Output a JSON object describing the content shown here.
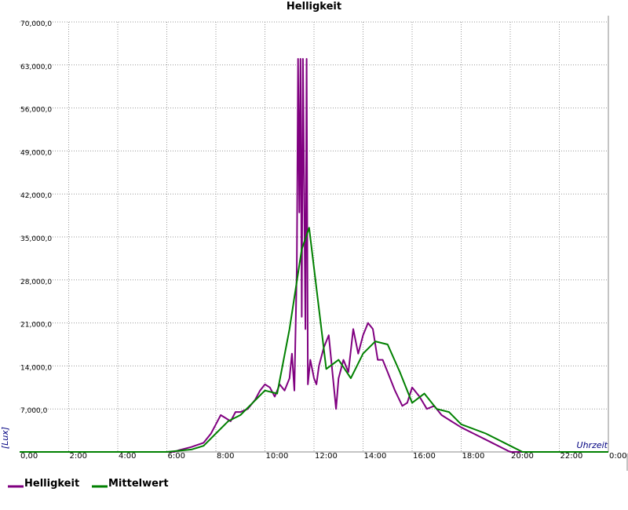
{
  "chart_data": {
    "type": "line",
    "title": "Helligkeit",
    "y_label": "[Lux]",
    "x_label": "Uhrzeit",
    "xlim": [
      0,
      24
    ],
    "ylim": [
      0,
      70000
    ],
    "grid": true,
    "legend": "bottom-left",
    "xticks": [
      {
        "value": 0,
        "label": "0,00"
      },
      {
        "value": 2,
        "label": "2:00"
      },
      {
        "value": 4,
        "label": "4:00"
      },
      {
        "value": 6,
        "label": "6:00"
      },
      {
        "value": 8,
        "label": "8:00"
      },
      {
        "value": 10,
        "label": "10:00"
      },
      {
        "value": 12,
        "label": "12:00"
      },
      {
        "value": 14,
        "label": "14:00"
      },
      {
        "value": 16,
        "label": "16:00"
      },
      {
        "value": 18,
        "label": "18:00"
      },
      {
        "value": 20,
        "label": "20:00"
      },
      {
        "value": 22,
        "label": "22:00"
      },
      {
        "value": 24,
        "label": "0:00"
      }
    ],
    "yticks": [
      {
        "value": 7000,
        "label": "7,000,0"
      },
      {
        "value": 14000,
        "label": "14,000,0"
      },
      {
        "value": 21000,
        "label": "21,000,0"
      },
      {
        "value": 28000,
        "label": "28,000,0"
      },
      {
        "value": 35000,
        "label": "35,000,0"
      },
      {
        "value": 42000,
        "label": "42,000,0"
      },
      {
        "value": 49000,
        "label": "49,000,0"
      },
      {
        "value": 56000,
        "label": "56,000,0"
      },
      {
        "value": 63000,
        "label": "63,000,0"
      },
      {
        "value": 70000,
        "label": "70,000,0"
      }
    ],
    "series": [
      {
        "name": "Helligkeit",
        "color": "#800080",
        "x": [
          0,
          6.3,
          6.5,
          7,
          7.5,
          7.8,
          8,
          8.2,
          8.4,
          8.6,
          8.8,
          9,
          9.3,
          9.6,
          9.8,
          10,
          10.2,
          10.4,
          10.6,
          10.8,
          11,
          11.1,
          11.2,
          11.3,
          11.35,
          11.4,
          11.45,
          11.5,
          11.55,
          11.65,
          11.7,
          11.75,
          11.85,
          12,
          12.1,
          12.2,
          12.4,
          12.6,
          12.8,
          12.9,
          13,
          13.2,
          13.4,
          13.6,
          13.8,
          14,
          14.2,
          14.4,
          14.6,
          14.8,
          15,
          15.3,
          15.6,
          15.8,
          16,
          16.3,
          16.6,
          16.9,
          17.2,
          17.6,
          18,
          18.5,
          19,
          19.5,
          20,
          24
        ],
        "values": [
          0,
          0,
          300,
          800,
          1500,
          3000,
          4500,
          6000,
          5500,
          5000,
          6500,
          6500,
          7000,
          8500,
          10000,
          11000,
          10500,
          9000,
          11000,
          10000,
          12000,
          16000,
          10000,
          30000,
          64000,
          39000,
          64000,
          22000,
          64000,
          20000,
          64000,
          11000,
          15000,
          12000,
          11000,
          14000,
          17000,
          19000,
          11000,
          7000,
          12000,
          15000,
          13000,
          20000,
          16000,
          19000,
          21000,
          20000,
          15000,
          15000,
          13000,
          10000,
          7500,
          8000,
          10500,
          9000,
          7000,
          7500,
          6000,
          5000,
          4000,
          3000,
          2000,
          1000,
          0,
          0
        ]
      },
      {
        "name": "Mittelwert",
        "color": "#008000",
        "x": [
          0,
          6,
          7,
          7.5,
          8,
          8.5,
          9,
          9.5,
          10,
          10.5,
          11,
          11.5,
          11.8,
          12.5,
          13,
          13.5,
          14,
          14.5,
          15,
          15.5,
          16,
          16.5,
          17,
          17.5,
          18,
          19,
          20,
          20.5,
          24
        ],
        "values": [
          0,
          0,
          400,
          1000,
          3000,
          5000,
          6000,
          8000,
          10000,
          9500,
          20000,
          33000,
          36500,
          13500,
          15000,
          12000,
          16000,
          18000,
          17500,
          13000,
          8000,
          9500,
          7000,
          6500,
          4500,
          3000,
          1000,
          0,
          0
        ]
      }
    ]
  }
}
